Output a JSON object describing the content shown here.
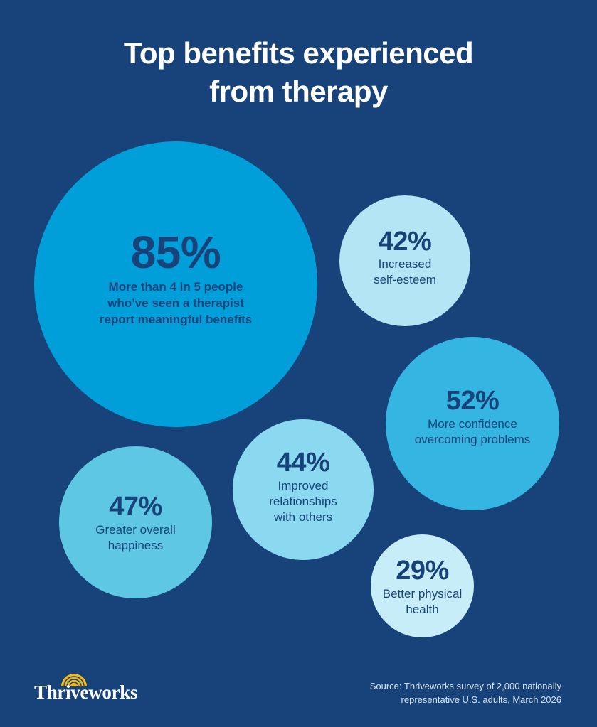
{
  "title": {
    "line1": "Top benefits experienced",
    "line2": "from therapy"
  },
  "chart_data": {
    "type": "bubble",
    "items": [
      {
        "value": 85,
        "label_pct": "85%",
        "label": "More than 4 in 5 people who’ve seen a therapist report meaningful benefits",
        "lines": [
          "More than 4 in 5 people",
          "who’ve seen a therapist",
          "report meaningful benefits"
        ],
        "color": "#009fda"
      },
      {
        "value": 42,
        "label_pct": "42%",
        "label": "Increased self-esteem",
        "lines": [
          "Increased",
          "self-esteem"
        ],
        "color": "#b3e5f4"
      },
      {
        "value": 52,
        "label_pct": "52%",
        "label": "More confidence overcoming problems",
        "lines": [
          "More confidence",
          "overcoming problems"
        ],
        "color": "#34b5e2"
      },
      {
        "value": 44,
        "label_pct": "44%",
        "label": "Improved relationships with others",
        "lines": [
          "Improved",
          "relationships",
          "with others"
        ],
        "color": "#8ad9f0"
      },
      {
        "value": 47,
        "label_pct": "47%",
        "label": "Greater overall happiness",
        "lines": [
          "Greater overall",
          "happiness"
        ],
        "color": "#5ec7e4"
      },
      {
        "value": 29,
        "label_pct": "29%",
        "label": "Better physical health",
        "lines": [
          "Better physical",
          "health"
        ],
        "color": "#c7eef8"
      }
    ]
  },
  "logo": {
    "text": "Thriveworks",
    "icon": "sun-icon",
    "sun_color": "#f5b81a"
  },
  "source": {
    "line1": "Source: Thriveworks survey of 2,000 nationally",
    "line2": "representative U.S. adults, March 2026"
  },
  "colors": {
    "background": "#17437a",
    "text_dark": "#17437a"
  }
}
